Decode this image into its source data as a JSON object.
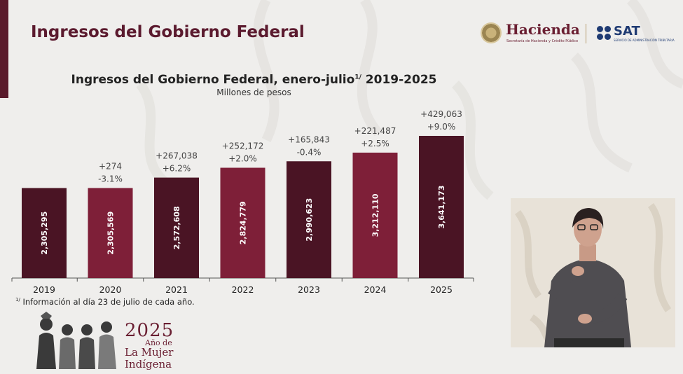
{
  "page": {
    "title": "Ingresos del Gobierno Federal"
  },
  "logos": {
    "hacienda": "Hacienda",
    "hacienda_sub": "Secretaría de Hacienda y Crédito Público",
    "sat": "SAT",
    "sat_sub": "SERVICIO DE ADMINISTRACIÓN TRIBUTARIA"
  },
  "chart_data": {
    "type": "bar",
    "title": "Ingresos del Gobierno Federal, enero-julio",
    "title_footnote_mark": "1/",
    "title_suffix": " 2019-2025",
    "subtitle": "Millones de pesos",
    "categories": [
      "2019",
      "2020",
      "2021",
      "2022",
      "2023",
      "2024",
      "2025"
    ],
    "values": [
      2305295,
      2305569,
      2572608,
      2824779,
      2990623,
      3212110,
      3641173
    ],
    "value_labels": [
      "2,305,295",
      "2,305,569",
      "2,572,608",
      "2,824,779",
      "2,990,623",
      "3,212,110",
      "3,641,173"
    ],
    "change_abs": [
      "",
      "+274",
      "+267,038",
      "+252,172",
      "+165,843",
      "+221,487",
      "+429,063"
    ],
    "change_pct": [
      "",
      "-3.1%",
      "+6.2%",
      "+2.0%",
      "-0.4%",
      "+2.5%",
      "+9.0%"
    ],
    "bar_colors": [
      "#4a1424",
      "#7e1f38",
      "#4a1424",
      "#7e1f38",
      "#4a1424",
      "#7e1f38",
      "#4a1424"
    ],
    "grid": false,
    "legend": "none"
  },
  "footnote": {
    "mark": "1/",
    "text": " Información al día 23 de julio de cada año."
  },
  "year_banner": {
    "year": "2025",
    "line1": "Año de",
    "line2": "La Mujer",
    "line3": "Indígena"
  },
  "colors": {
    "accent": "#5b1a2e",
    "bar_dark": "#4a1424",
    "bar_light": "#7e1f38"
  }
}
